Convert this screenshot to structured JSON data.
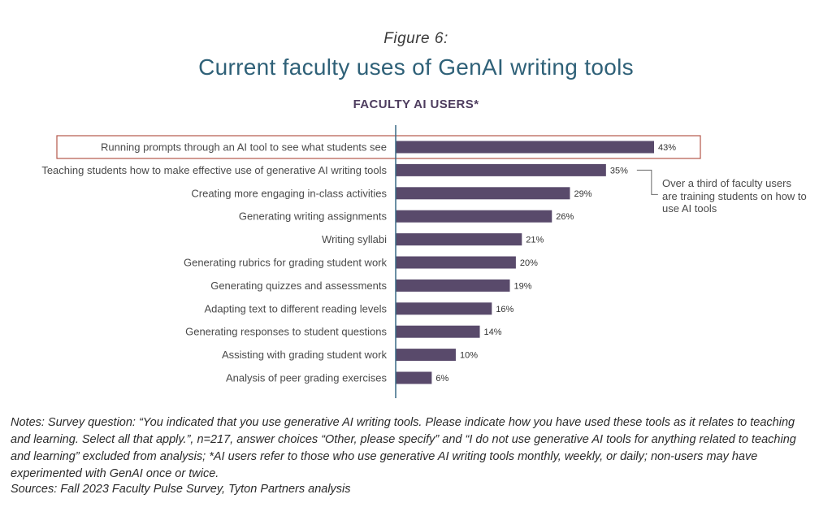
{
  "figure_label": "Figure 6:",
  "title": "Current faculty uses of GenAI writing tools",
  "subtitle": "FACULTY AI USERS*",
  "colors": {
    "bar": "#594a6b",
    "axis": "#3a6a85",
    "highlight_box": "#b5574a",
    "title": "#2f6178",
    "subtitle": "#4e3d5f"
  },
  "chart_data": {
    "type": "bar",
    "orientation": "horizontal",
    "categories": [
      "Running prompts through an AI tool to see what students see",
      "Teaching students how to make effective use of generative AI writing tools",
      "Creating more engaging in-class activities",
      "Generating writing assignments",
      "Writing syllabi",
      "Generating rubrics for grading student work",
      "Generating quizzes and assessments",
      "Adapting text to different reading levels",
      "Generating responses to student questions",
      "Assisting with grading student work",
      "Analysis of peer grading exercises"
    ],
    "values": [
      43,
      35,
      29,
      26,
      21,
      20,
      19,
      16,
      14,
      10,
      6
    ],
    "value_labels": [
      "43%",
      "35%",
      "29%",
      "26%",
      "21%",
      "20%",
      "19%",
      "16%",
      "14%",
      "10%",
      "6%"
    ],
    "xlim": [
      0,
      43
    ],
    "highlighted_category_index": 0,
    "callout_category_index": 1
  },
  "callout_text": "Over a third of faculty users are training students on how to use AI tools",
  "notes": "Notes: Survey question: “You indicated that you use generative AI writing tools. Please indicate how you have used these tools as it relates to teaching and learning. Select all that apply.”, n=217, answer choices “Other, please specify” and “I do not use generative AI tools for anything related to teaching and learning” excluded from analysis; *AI users refer to those who use generative AI writing tools monthly, weekly, or daily; non-users may have experimented with GenAI once or twice.",
  "sources": "Sources: Fall 2023 Faculty Pulse Survey, Tyton Partners analysis"
}
